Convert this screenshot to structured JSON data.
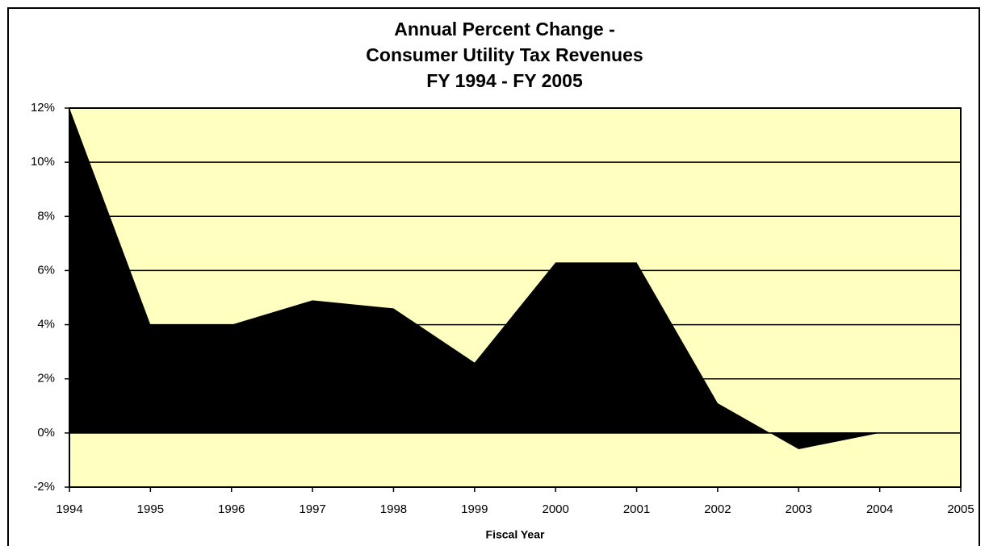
{
  "chart_data": {
    "type": "area",
    "title": [
      "Annual Percent Change -",
      "Consumer Utility Tax Revenues",
      "FY 1994 - FY 2005"
    ],
    "x_label": "Fiscal Year",
    "x": [
      1994,
      1995,
      1996,
      1997,
      1998,
      1999,
      2000,
      2001,
      2002,
      2003,
      2004
    ],
    "values": [
      12,
      4.0,
      4.0,
      4.9,
      4.6,
      2.6,
      6.3,
      6.3,
      1.1,
      -0.6,
      0
    ],
    "color": "#000000",
    "plot_background": "#ffffc0",
    "xlim": [
      1994,
      2005
    ],
    "xticks": [
      1994,
      1995,
      1996,
      1997,
      1998,
      1999,
      2000,
      2001,
      2002,
      2003,
      2004,
      2005
    ],
    "ylim": [
      -2,
      12
    ],
    "yticks": [
      {
        "value": -2,
        "label": "-2%"
      },
      {
        "value": 0,
        "label": "0%"
      },
      {
        "value": 2,
        "label": "2%"
      },
      {
        "value": 4,
        "label": "4%"
      },
      {
        "value": 6,
        "label": "6%"
      },
      {
        "value": 8,
        "label": "8%"
      },
      {
        "value": 10,
        "label": "10%"
      },
      {
        "value": 12,
        "label": "12%"
      }
    ],
    "grid": true
  }
}
